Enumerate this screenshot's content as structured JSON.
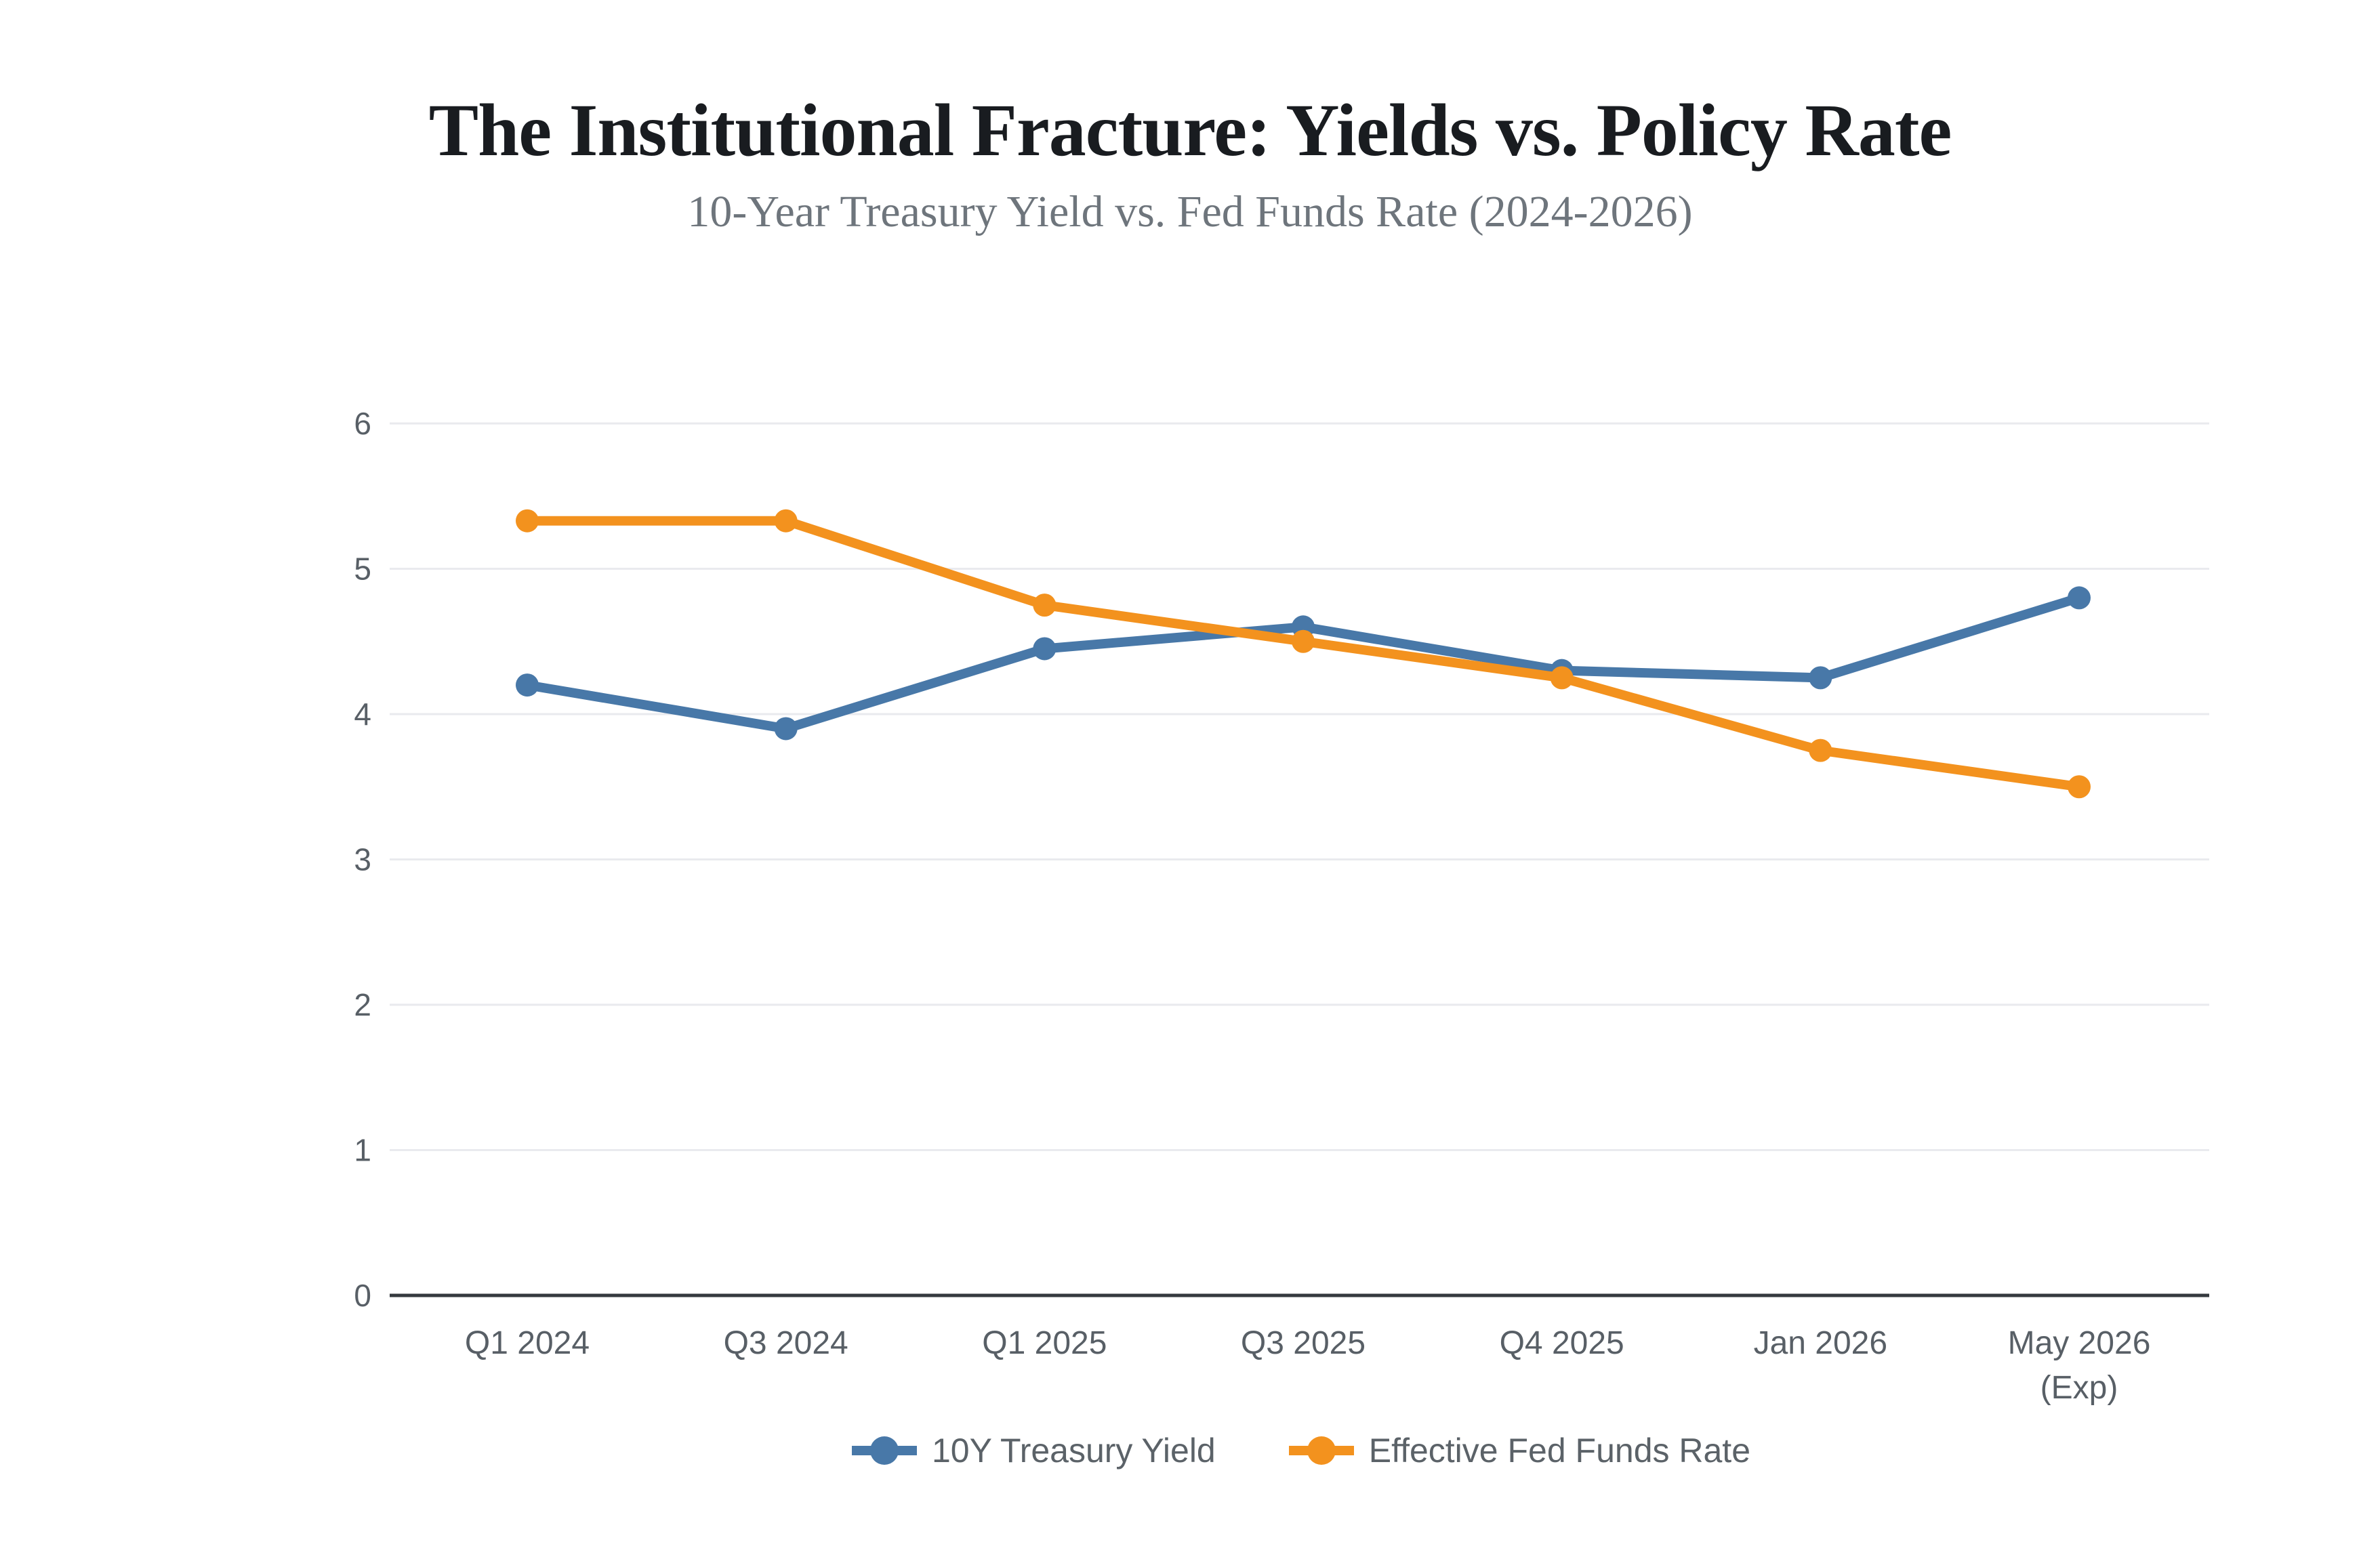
{
  "header": {
    "title": "The Institutional Fracture: Yields vs. Policy Rate",
    "subtitle": "10-Year Treasury Yield vs. Fed Funds Rate (2024-2026)"
  },
  "chart_data": {
    "type": "line",
    "categories": [
      "Q1 2024",
      "Q3 2024",
      "Q1 2025",
      "Q3 2025",
      "Q4 2025",
      "Jan 2026",
      "May 2026 (Exp)"
    ],
    "series": [
      {
        "name": "10Y Treasury Yield",
        "color": "#4878A8",
        "values": [
          4.2,
          3.9,
          4.45,
          4.6,
          4.3,
          4.25,
          4.8
        ]
      },
      {
        "name": "Effective Fed Funds Rate",
        "color": "#F3921E",
        "values": [
          5.33,
          5.33,
          4.75,
          4.5,
          4.25,
          3.75,
          3.5
        ]
      }
    ],
    "ylim": [
      0,
      6
    ],
    "yticks": [
      0,
      1,
      2,
      3,
      4,
      5,
      6
    ],
    "grid": true,
    "legend_position": "bottom",
    "colors": {
      "axis": "#35393e",
      "gridline": "#e9eaee",
      "tick_label": "#585f66",
      "title": "#191c20",
      "subtitle": "#6e757c",
      "legend_label": "#5b6268"
    }
  }
}
